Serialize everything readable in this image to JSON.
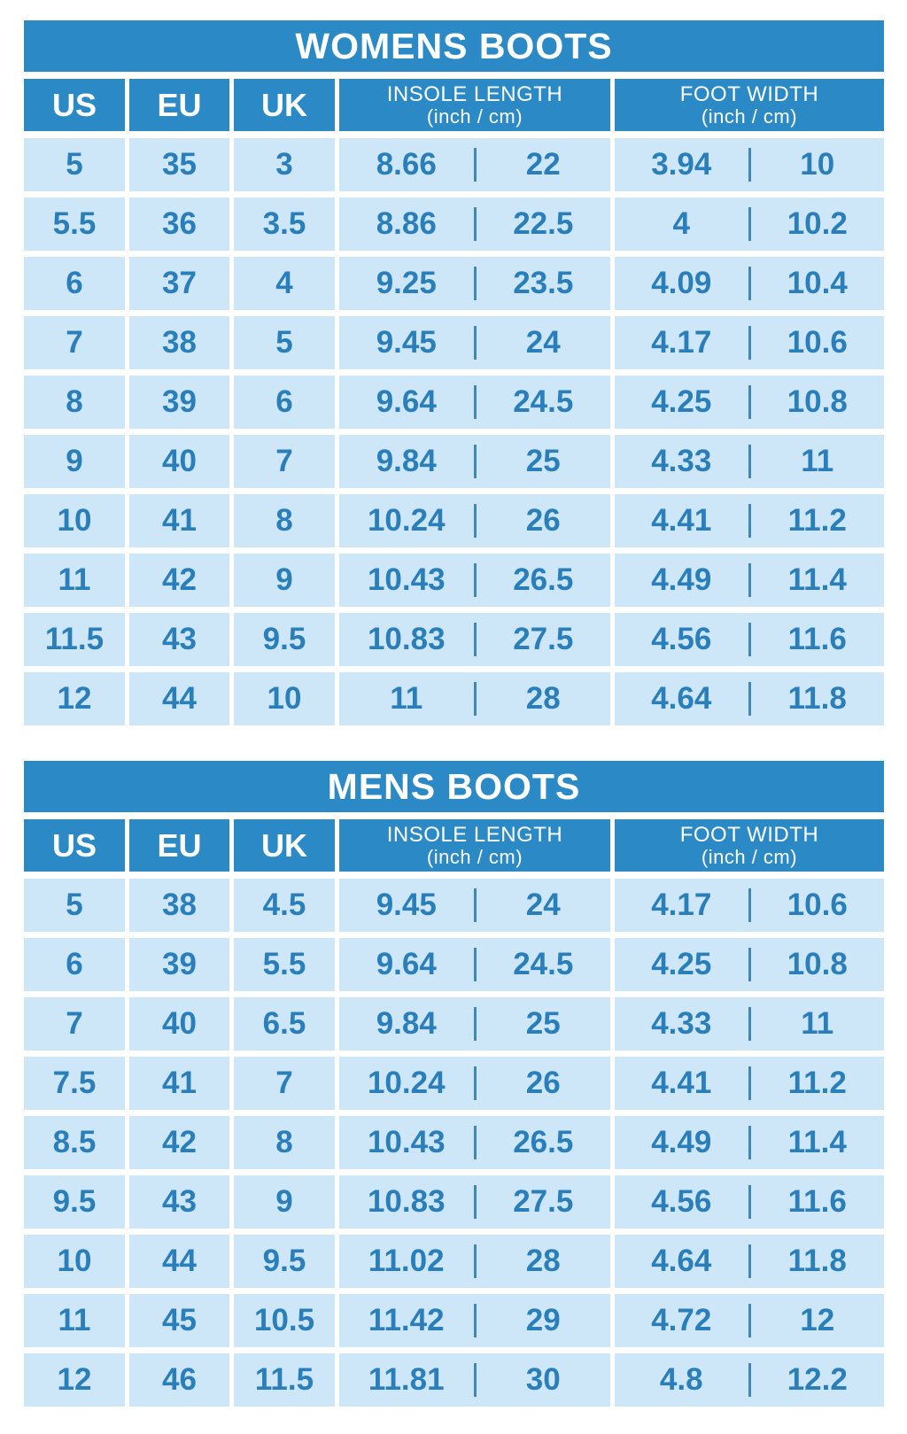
{
  "colors": {
    "banner_blue": "#2b8ac5",
    "cell_background": "#cde7f8",
    "value_text": "#2a7eba",
    "divider": "#3f87ba",
    "page_background": "#ffffff",
    "header_text": "#ffffff"
  },
  "tables": [
    {
      "title": "WOMENS BOOTS",
      "columns": [
        "US",
        "EU",
        "UK"
      ],
      "insole_header": {
        "label": "INSOLE LENGTH",
        "sub": "(inch / cm)"
      },
      "width_header": {
        "label": "FOOT WIDTH",
        "sub": "(inch / cm)"
      },
      "rows": [
        {
          "us": "5",
          "eu": "35",
          "uk": "3",
          "insole_in": "8.66",
          "insole_cm": "22",
          "width_in": "3.94",
          "width_cm": "10"
        },
        {
          "us": "5.5",
          "eu": "36",
          "uk": "3.5",
          "insole_in": "8.86",
          "insole_cm": "22.5",
          "width_in": "4",
          "width_cm": "10.2"
        },
        {
          "us": "6",
          "eu": "37",
          "uk": "4",
          "insole_in": "9.25",
          "insole_cm": "23.5",
          "width_in": "4.09",
          "width_cm": "10.4"
        },
        {
          "us": "7",
          "eu": "38",
          "uk": "5",
          "insole_in": "9.45",
          "insole_cm": "24",
          "width_in": "4.17",
          "width_cm": "10.6"
        },
        {
          "us": "8",
          "eu": "39",
          "uk": "6",
          "insole_in": "9.64",
          "insole_cm": "24.5",
          "width_in": "4.25",
          "width_cm": "10.8"
        },
        {
          "us": "9",
          "eu": "40",
          "uk": "7",
          "insole_in": "9.84",
          "insole_cm": "25",
          "width_in": "4.33",
          "width_cm": "11"
        },
        {
          "us": "10",
          "eu": "41",
          "uk": "8",
          "insole_in": "10.24",
          "insole_cm": "26",
          "width_in": "4.41",
          "width_cm": "11.2"
        },
        {
          "us": "11",
          "eu": "42",
          "uk": "9",
          "insole_in": "10.43",
          "insole_cm": "26.5",
          "width_in": "4.49",
          "width_cm": "11.4"
        },
        {
          "us": "11.5",
          "eu": "43",
          "uk": "9.5",
          "insole_in": "10.83",
          "insole_cm": "27.5",
          "width_in": "4.56",
          "width_cm": "11.6"
        },
        {
          "us": "12",
          "eu": "44",
          "uk": "10",
          "insole_in": "11",
          "insole_cm": "28",
          "width_in": "4.64",
          "width_cm": "11.8"
        }
      ]
    },
    {
      "title": "MENS BOOTS",
      "columns": [
        "US",
        "EU",
        "UK"
      ],
      "insole_header": {
        "label": "INSOLE LENGTH",
        "sub": "(inch / cm)"
      },
      "width_header": {
        "label": "FOOT WIDTH",
        "sub": "(inch / cm)"
      },
      "rows": [
        {
          "us": "5",
          "eu": "38",
          "uk": "4.5",
          "insole_in": "9.45",
          "insole_cm": "24",
          "width_in": "4.17",
          "width_cm": "10.6"
        },
        {
          "us": "6",
          "eu": "39",
          "uk": "5.5",
          "insole_in": "9.64",
          "insole_cm": "24.5",
          "width_in": "4.25",
          "width_cm": "10.8"
        },
        {
          "us": "7",
          "eu": "40",
          "uk": "6.5",
          "insole_in": "9.84",
          "insole_cm": "25",
          "width_in": "4.33",
          "width_cm": "11"
        },
        {
          "us": "7.5",
          "eu": "41",
          "uk": "7",
          "insole_in": "10.24",
          "insole_cm": "26",
          "width_in": "4.41",
          "width_cm": "11.2"
        },
        {
          "us": "8.5",
          "eu": "42",
          "uk": "8",
          "insole_in": "10.43",
          "insole_cm": "26.5",
          "width_in": "4.49",
          "width_cm": "11.4"
        },
        {
          "us": "9.5",
          "eu": "43",
          "uk": "9",
          "insole_in": "10.83",
          "insole_cm": "27.5",
          "width_in": "4.56",
          "width_cm": "11.6"
        },
        {
          "us": "10",
          "eu": "44",
          "uk": "9.5",
          "insole_in": "11.02",
          "insole_cm": "28",
          "width_in": "4.64",
          "width_cm": "11.8"
        },
        {
          "us": "11",
          "eu": "45",
          "uk": "10.5",
          "insole_in": "11.42",
          "insole_cm": "29",
          "width_in": "4.72",
          "width_cm": "12"
        },
        {
          "us": "12",
          "eu": "46",
          "uk": "11.5",
          "insole_in": "11.81",
          "insole_cm": "30",
          "width_in": "4.8",
          "width_cm": "12.2"
        }
      ]
    }
  ],
  "chart_data": [
    {
      "type": "table",
      "title": "WOMENS BOOTS",
      "columns": [
        "US",
        "EU",
        "UK",
        "INSOLE LENGTH (inch)",
        "INSOLE LENGTH (cm)",
        "FOOT WIDTH (inch)",
        "FOOT WIDTH (cm)"
      ],
      "rows": [
        [
          5,
          35,
          3,
          8.66,
          22,
          3.94,
          10
        ],
        [
          5.5,
          36,
          3.5,
          8.86,
          22.5,
          4,
          10.2
        ],
        [
          6,
          37,
          4,
          9.25,
          23.5,
          4.09,
          10.4
        ],
        [
          7,
          38,
          5,
          9.45,
          24,
          4.17,
          10.6
        ],
        [
          8,
          39,
          6,
          9.64,
          24.5,
          4.25,
          10.8
        ],
        [
          9,
          40,
          7,
          9.84,
          25,
          4.33,
          11
        ],
        [
          10,
          41,
          8,
          10.24,
          26,
          4.41,
          11.2
        ],
        [
          11,
          42,
          9,
          10.43,
          26.5,
          4.49,
          11.4
        ],
        [
          11.5,
          43,
          9.5,
          10.83,
          27.5,
          4.56,
          11.6
        ],
        [
          12,
          44,
          10,
          11,
          28,
          4.64,
          11.8
        ]
      ]
    },
    {
      "type": "table",
      "title": "MENS BOOTS",
      "columns": [
        "US",
        "EU",
        "UK",
        "INSOLE LENGTH (inch)",
        "INSOLE LENGTH (cm)",
        "FOOT WIDTH (inch)",
        "FOOT WIDTH (cm)"
      ],
      "rows": [
        [
          5,
          38,
          4.5,
          9.45,
          24,
          4.17,
          10.6
        ],
        [
          6,
          39,
          5.5,
          9.64,
          24.5,
          4.25,
          10.8
        ],
        [
          7,
          40,
          6.5,
          9.84,
          25,
          4.33,
          11
        ],
        [
          7.5,
          41,
          7,
          10.24,
          26,
          4.41,
          11.2
        ],
        [
          8.5,
          42,
          8,
          10.43,
          26.5,
          4.49,
          11.4
        ],
        [
          9.5,
          43,
          9,
          10.83,
          27.5,
          4.56,
          11.6
        ],
        [
          10,
          44,
          9.5,
          11.02,
          28,
          4.64,
          11.8
        ],
        [
          11,
          45,
          10.5,
          11.42,
          29,
          4.72,
          12
        ],
        [
          12,
          46,
          11.5,
          11.81,
          30,
          4.8,
          12.2
        ]
      ]
    }
  ]
}
